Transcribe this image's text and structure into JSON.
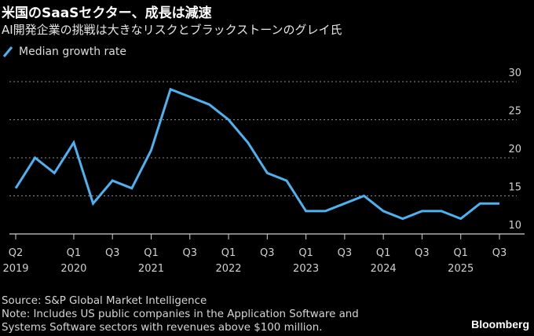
{
  "chart_data": {
    "type": "line",
    "title": "米国のSaaSセクター、成長は減速",
    "subtitle": "AI開発企業の挑戦は大きなリスクとブラックストーンのグレイ氏",
    "xlabel": "",
    "ylabel": "",
    "ylim": [
      10,
      30
    ],
    "yticks": [
      "10",
      "15",
      "20",
      "25",
      "30"
    ],
    "grid": true,
    "legend_position": "top-left",
    "x": [
      "Q2 2019",
      "Q3 2019",
      "Q4 2019",
      "Q1 2020",
      "Q2 2020",
      "Q3 2020",
      "Q4 2020",
      "Q1 2021",
      "Q2 2021",
      "Q3 2021",
      "Q4 2021",
      "Q1 2022",
      "Q2 2022",
      "Q3 2022",
      "Q4 2022",
      "Q1 2023",
      "Q2 2023",
      "Q3 2023",
      "Q4 2023",
      "Q1 2024",
      "Q2 2024",
      "Q3 2024",
      "Q4 2024",
      "Q1 2025",
      "Q2 2025",
      "Q3 2025"
    ],
    "xticks": [
      {
        "index": 0,
        "line1": "Q2",
        "line2": "2019"
      },
      {
        "index": 3,
        "line1": "Q1",
        "line2": "2020"
      },
      {
        "index": 5,
        "line1": "Q3",
        "line2": ""
      },
      {
        "index": 7,
        "line1": "Q1",
        "line2": "2021"
      },
      {
        "index": 9,
        "line1": "Q3",
        "line2": ""
      },
      {
        "index": 11,
        "line1": "Q1",
        "line2": "2022"
      },
      {
        "index": 13,
        "line1": "Q3",
        "line2": ""
      },
      {
        "index": 15,
        "line1": "Q1",
        "line2": "2023"
      },
      {
        "index": 17,
        "line1": "Q3",
        "line2": ""
      },
      {
        "index": 19,
        "line1": "Q1",
        "line2": "2024"
      },
      {
        "index": 21,
        "line1": "Q3",
        "line2": ""
      },
      {
        "index": 23,
        "line1": "Q1",
        "line2": "2025"
      },
      {
        "index": 25,
        "line1": "Q3",
        "line2": ""
      }
    ],
    "series": [
      {
        "name": "Median growth rate",
        "color": "#4cb3f0",
        "values": [
          16,
          20,
          18,
          22,
          14,
          17,
          16,
          21,
          29,
          28,
          27,
          25,
          22,
          18,
          17,
          13,
          13,
          14,
          15,
          13,
          12,
          13,
          13,
          12,
          14,
          14
        ]
      }
    ]
  },
  "footer": {
    "source": "Source: S&P Global Market Intelligence",
    "note_line1": "Note: Includes US public companies in the Application Software and",
    "note_line2": "Systems Software sectors with revenues above $100 million."
  },
  "brand": "Bloomberg"
}
